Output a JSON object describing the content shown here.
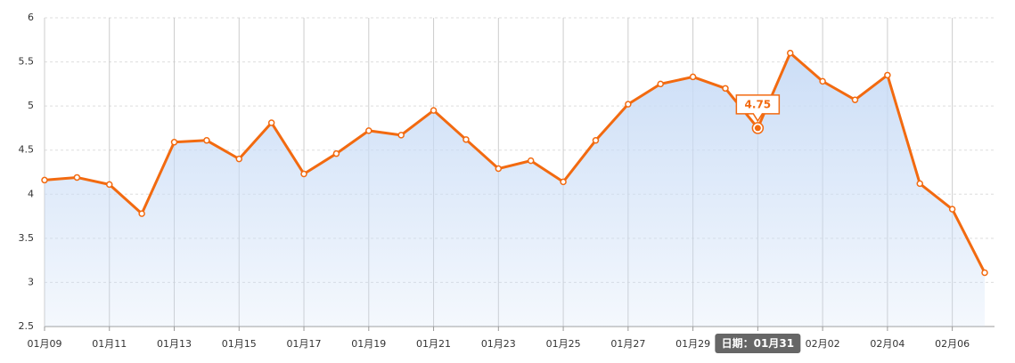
{
  "chart_data": {
    "type": "area-line",
    "categories": [
      "01月09",
      null,
      "01月11",
      null,
      "01月13",
      null,
      "01月15",
      null,
      "01月17",
      null,
      "01月19",
      null,
      "01月21",
      null,
      "01月23",
      null,
      "01月25",
      null,
      "01月27",
      null,
      "01月29",
      null,
      "01月31",
      null,
      "02月02",
      null,
      "02月04",
      null,
      "02月06",
      null
    ],
    "series": [
      {
        "color": "#f26a10",
        "fill": "#c9dcf6",
        "values": [
          4.16,
          4.19,
          4.11,
          3.78,
          4.59,
          4.61,
          4.4,
          4.81,
          4.23,
          4.46,
          4.72,
          4.67,
          4.95,
          4.62,
          4.29,
          4.38,
          4.14,
          4.61,
          5.02,
          5.25,
          5.33,
          5.2,
          4.75,
          5.6,
          5.28,
          5.07,
          5.35,
          4.12,
          3.83,
          3.11
        ]
      }
    ],
    "ylim": [
      2.5,
      6
    ],
    "yticks": [
      2.5,
      3,
      3.5,
      4,
      4.5,
      5,
      5.5,
      6
    ],
    "grid": true,
    "tooltip_prefix": "日期："
  }
}
